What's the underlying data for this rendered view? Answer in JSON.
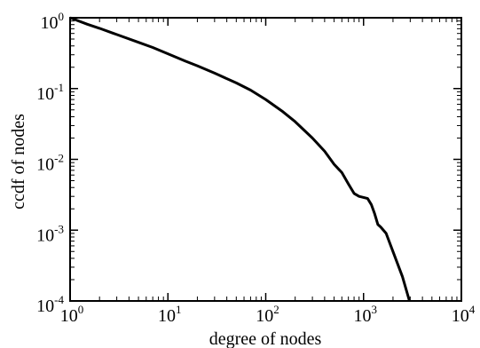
{
  "chart_data": {
    "type": "line",
    "xlabel": "degree of nodes",
    "ylabel": "ccdf of nodes",
    "x_scale": "log",
    "y_scale": "log",
    "xlim": [
      1,
      10000
    ],
    "ylim": [
      0.0001,
      1
    ],
    "x_ticks": [
      {
        "base": "10",
        "exp": "0",
        "value": 1
      },
      {
        "base": "10",
        "exp": "1",
        "value": 10
      },
      {
        "base": "10",
        "exp": "2",
        "value": 100
      },
      {
        "base": "10",
        "exp": "3",
        "value": 1000
      },
      {
        "base": "10",
        "exp": "4",
        "value": 10000
      }
    ],
    "y_ticks": [
      {
        "base": "10",
        "exp": "0",
        "value": 1
      },
      {
        "base": "10",
        "exp": "-1",
        "value": 0.1
      },
      {
        "base": "10",
        "exp": "-2",
        "value": 0.01
      },
      {
        "base": "10",
        "exp": "-3",
        "value": 0.001
      },
      {
        "base": "10",
        "exp": "-4",
        "value": 0.0001
      }
    ],
    "grid": false,
    "series": [
      {
        "color": "#000000",
        "points": [
          [
            1,
            1.0
          ],
          [
            1.5,
            0.81
          ],
          [
            2,
            0.71
          ],
          [
            3,
            0.58
          ],
          [
            5,
            0.45
          ],
          [
            7,
            0.38
          ],
          [
            10,
            0.31
          ],
          [
            15,
            0.245
          ],
          [
            20,
            0.21
          ],
          [
            30,
            0.165
          ],
          [
            50,
            0.12
          ],
          [
            70,
            0.095
          ],
          [
            100,
            0.07
          ],
          [
            150,
            0.047
          ],
          [
            200,
            0.034
          ],
          [
            300,
            0.02
          ],
          [
            400,
            0.013
          ],
          [
            500,
            0.0085
          ],
          [
            600,
            0.0065
          ],
          [
            700,
            0.0045
          ],
          [
            800,
            0.0033
          ],
          [
            900,
            0.003
          ],
          [
            1000,
            0.0029
          ],
          [
            1100,
            0.0028
          ],
          [
            1200,
            0.0023
          ],
          [
            1300,
            0.0017
          ],
          [
            1400,
            0.0012
          ],
          [
            1500,
            0.0011
          ],
          [
            1700,
            0.0009
          ],
          [
            2000,
            0.0005
          ],
          [
            2500,
            0.00022
          ],
          [
            2950,
            0.0001
          ]
        ]
      }
    ]
  }
}
